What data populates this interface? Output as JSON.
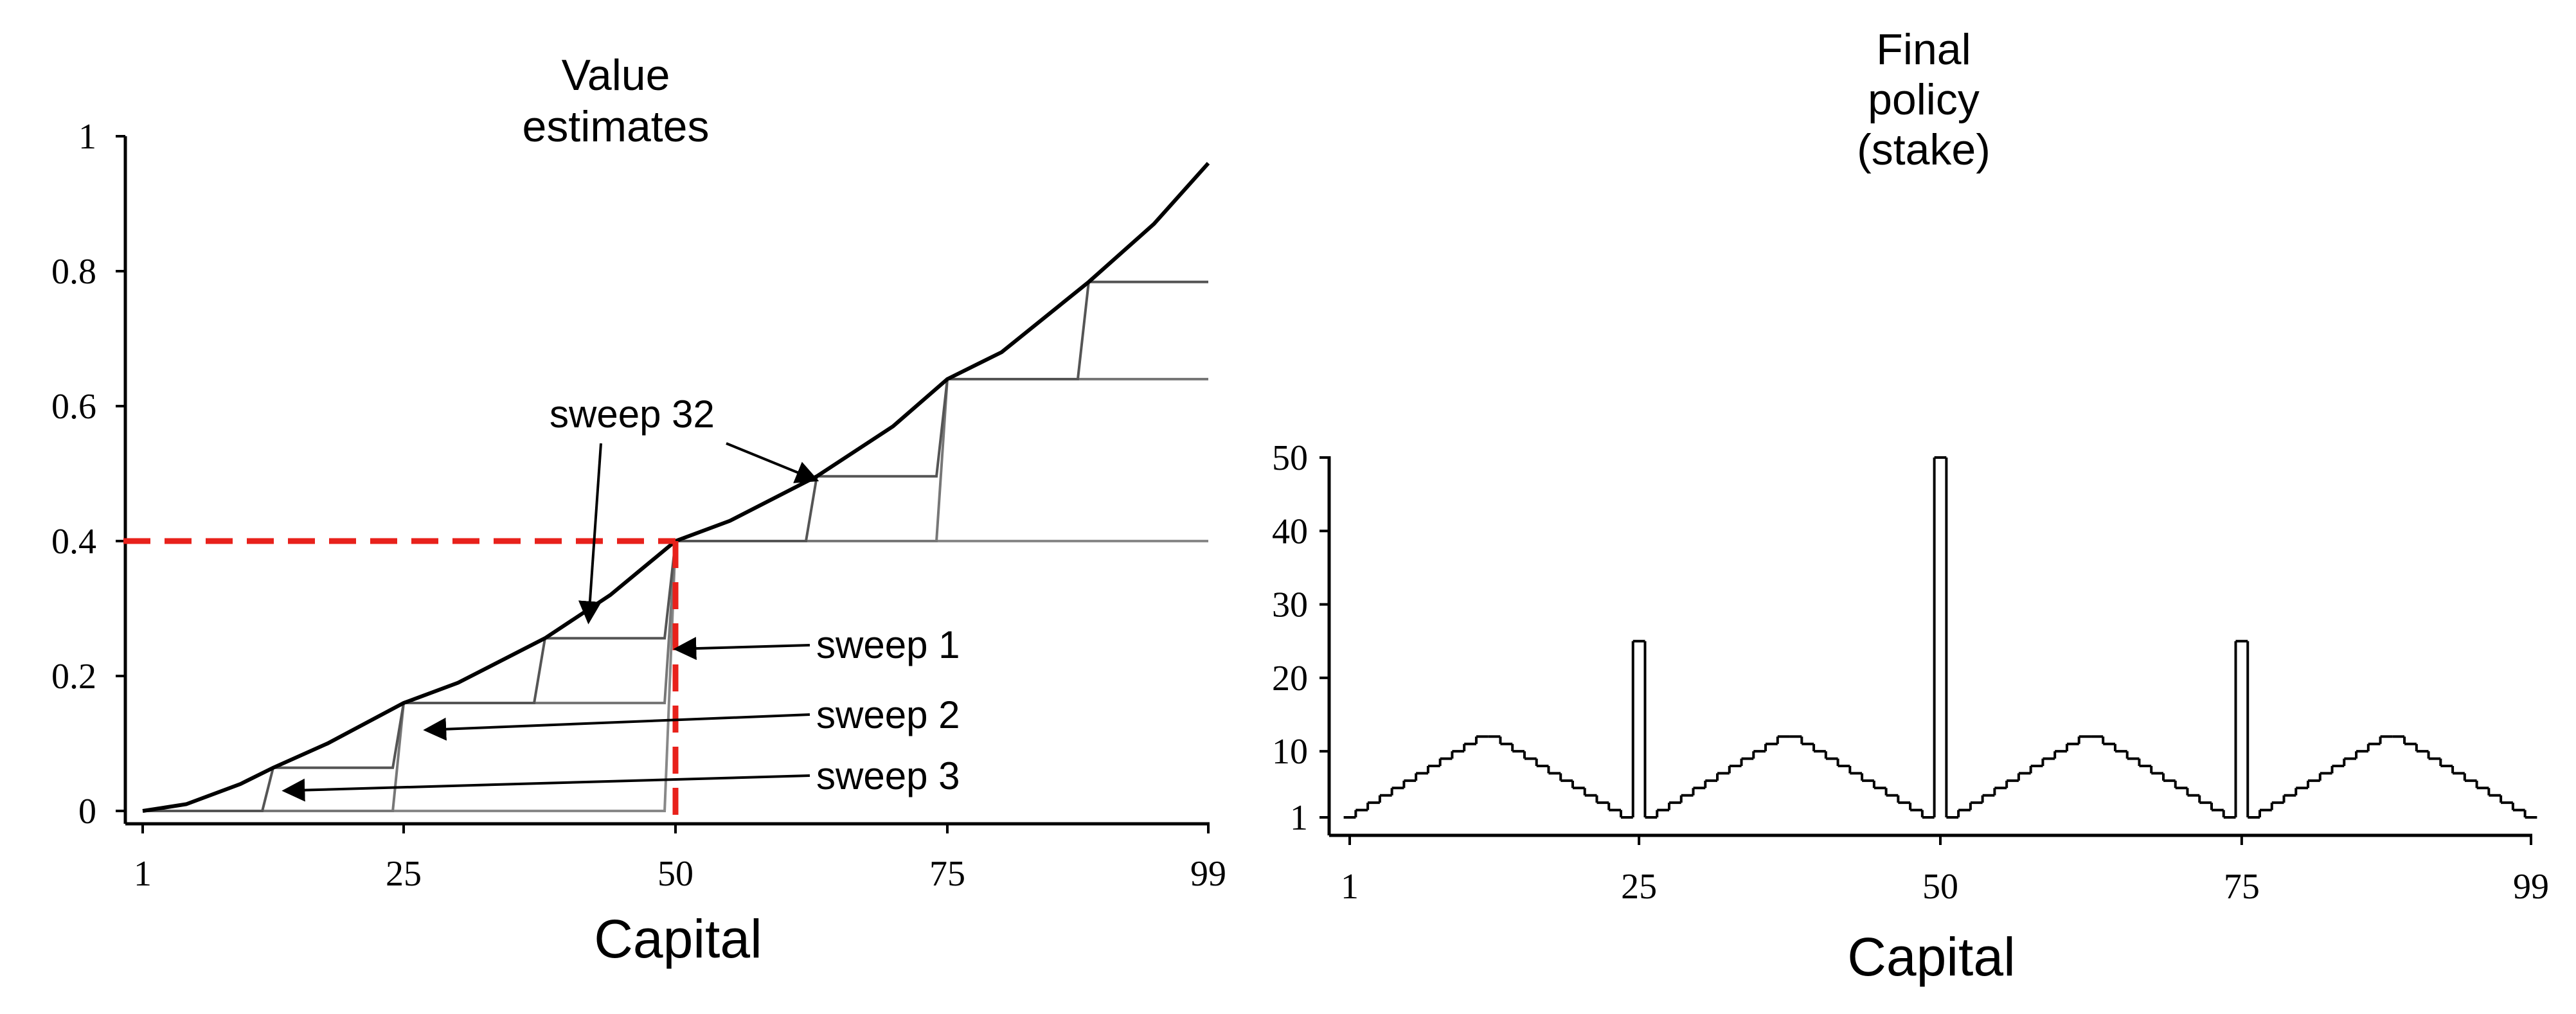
{
  "chart_data": [
    {
      "type": "line",
      "title": [
        "Value",
        "estimates"
      ],
      "xlabel": "Capital",
      "ylabel": "",
      "xlim": [
        1,
        99
      ],
      "ylim": [
        0,
        1
      ],
      "x_ticks": [
        "1",
        "25",
        "50",
        "75",
        "99"
      ],
      "x_tick_values": [
        1,
        25,
        50,
        75,
        99
      ],
      "y_ticks": [
        "0",
        "0.2",
        "0.4",
        "0.6",
        "0.8",
        "1"
      ],
      "y_tick_values": [
        0,
        0.2,
        0.4,
        0.6,
        0.8,
        1
      ],
      "series": [
        {
          "name": "sweep 1",
          "color": "#888888",
          "x": [
            1,
            49,
            50,
            99
          ],
          "y": [
            0,
            0,
            0.4,
            0.4
          ]
        },
        {
          "name": "sweep 2",
          "color": "#777777",
          "x": [
            1,
            24,
            25,
            49,
            50,
            74,
            75,
            99
          ],
          "y": [
            0,
            0,
            0.16,
            0.16,
            0.4,
            0.4,
            0.64,
            0.64
          ]
        },
        {
          "name": "sweep 3",
          "color": "#555555",
          "x": [
            1,
            12,
            13,
            24,
            25,
            37,
            38,
            49,
            50,
            62,
            63,
            74,
            75,
            87,
            88,
            99
          ],
          "y": [
            0,
            0,
            0.064,
            0.064,
            0.16,
            0.16,
            0.256,
            0.256,
            0.4,
            0.4,
            0.496,
            0.496,
            0.64,
            0.64,
            0.784,
            0.784
          ]
        },
        {
          "name": "sweep 32",
          "color": "#000000",
          "x": [
            1,
            5,
            10,
            13,
            18,
            25,
            30,
            38,
            44,
            50,
            55,
            63,
            70,
            75,
            80,
            88,
            94,
            99
          ],
          "y": [
            0,
            0.01,
            0.04,
            0.064,
            0.1,
            0.16,
            0.19,
            0.256,
            0.32,
            0.4,
            0.43,
            0.496,
            0.57,
            0.64,
            0.68,
            0.784,
            0.87,
            0.96
          ]
        }
      ],
      "reference_lines": [
        {
          "kind": "horizontal",
          "y": 0.4,
          "x_from": 1,
          "x_to": 50,
          "color": "#e8211b",
          "style": "dashed"
        },
        {
          "kind": "vertical",
          "x": 50,
          "y_from": 0,
          "y_to": 0.4,
          "color": "#e8211b",
          "style": "dashed"
        }
      ],
      "annotations": [
        {
          "text": "sweep 32",
          "points_to": {
            "x": 42,
            "y": 0.28
          }
        },
        {
          "text": "sweep 1",
          "points_to": {
            "x": 50,
            "y": 0.24
          }
        },
        {
          "text": "sweep 2",
          "points_to": {
            "x": 27,
            "y": 0.12
          }
        },
        {
          "text": "sweep 3",
          "points_to": {
            "x": 14,
            "y": 0.03
          }
        }
      ],
      "annotations_extra": [
        {
          "text": "",
          "points_to": {
            "x": 63,
            "y": 0.49
          }
        }
      ]
    },
    {
      "type": "bar",
      "style": "step",
      "title": [
        "Final",
        "policy",
        "(stake)"
      ],
      "xlabel": "Capital",
      "ylabel": "",
      "xlim": [
        1,
        99
      ],
      "ylim": [
        1,
        50
      ],
      "x_ticks": [
        "1",
        "25",
        "50",
        "75",
        "99"
      ],
      "x_tick_values": [
        1,
        25,
        50,
        75,
        99
      ],
      "y_ticks": [
        "1",
        "10",
        "20",
        "30",
        "40",
        "50"
      ],
      "y_tick_values": [
        1,
        10,
        20,
        30,
        40,
        50
      ],
      "x": [
        1,
        2,
        3,
        4,
        5,
        6,
        7,
        8,
        9,
        10,
        11,
        12,
        13,
        14,
        15,
        16,
        17,
        18,
        19,
        20,
        21,
        22,
        23,
        24,
        25,
        26,
        27,
        28,
        29,
        30,
        31,
        32,
        33,
        34,
        35,
        36,
        37,
        38,
        39,
        40,
        41,
        42,
        43,
        44,
        45,
        46,
        47,
        48,
        49,
        50,
        51,
        52,
        53,
        54,
        55,
        56,
        57,
        58,
        59,
        60,
        61,
        62,
        63,
        64,
        65,
        66,
        67,
        68,
        69,
        70,
        71,
        72,
        73,
        74,
        75,
        76,
        77,
        78,
        79,
        80,
        81,
        82,
        83,
        84,
        85,
        86,
        87,
        88,
        89,
        90,
        91,
        92,
        93,
        94,
        95,
        96,
        97,
        98,
        99
      ],
      "values": [
        1,
        2,
        3,
        4,
        5,
        6,
        7,
        8,
        9,
        10,
        11,
        12,
        12,
        11,
        10,
        9,
        8,
        7,
        6,
        5,
        4,
        3,
        2,
        1,
        25,
        1,
        2,
        3,
        4,
        5,
        6,
        7,
        8,
        9,
        10,
        11,
        12,
        12,
        11,
        10,
        9,
        8,
        7,
        6,
        5,
        4,
        3,
        2,
        1,
        50,
        1,
        2,
        3,
        4,
        5,
        6,
        7,
        8,
        9,
        10,
        11,
        12,
        12,
        11,
        10,
        9,
        8,
        7,
        6,
        5,
        4,
        3,
        2,
        1,
        25,
        1,
        2,
        3,
        4,
        5,
        6,
        7,
        8,
        9,
        10,
        11,
        12,
        12,
        11,
        10,
        9,
        8,
        7,
        6,
        5,
        4,
        3,
        2,
        1
      ]
    }
  ]
}
